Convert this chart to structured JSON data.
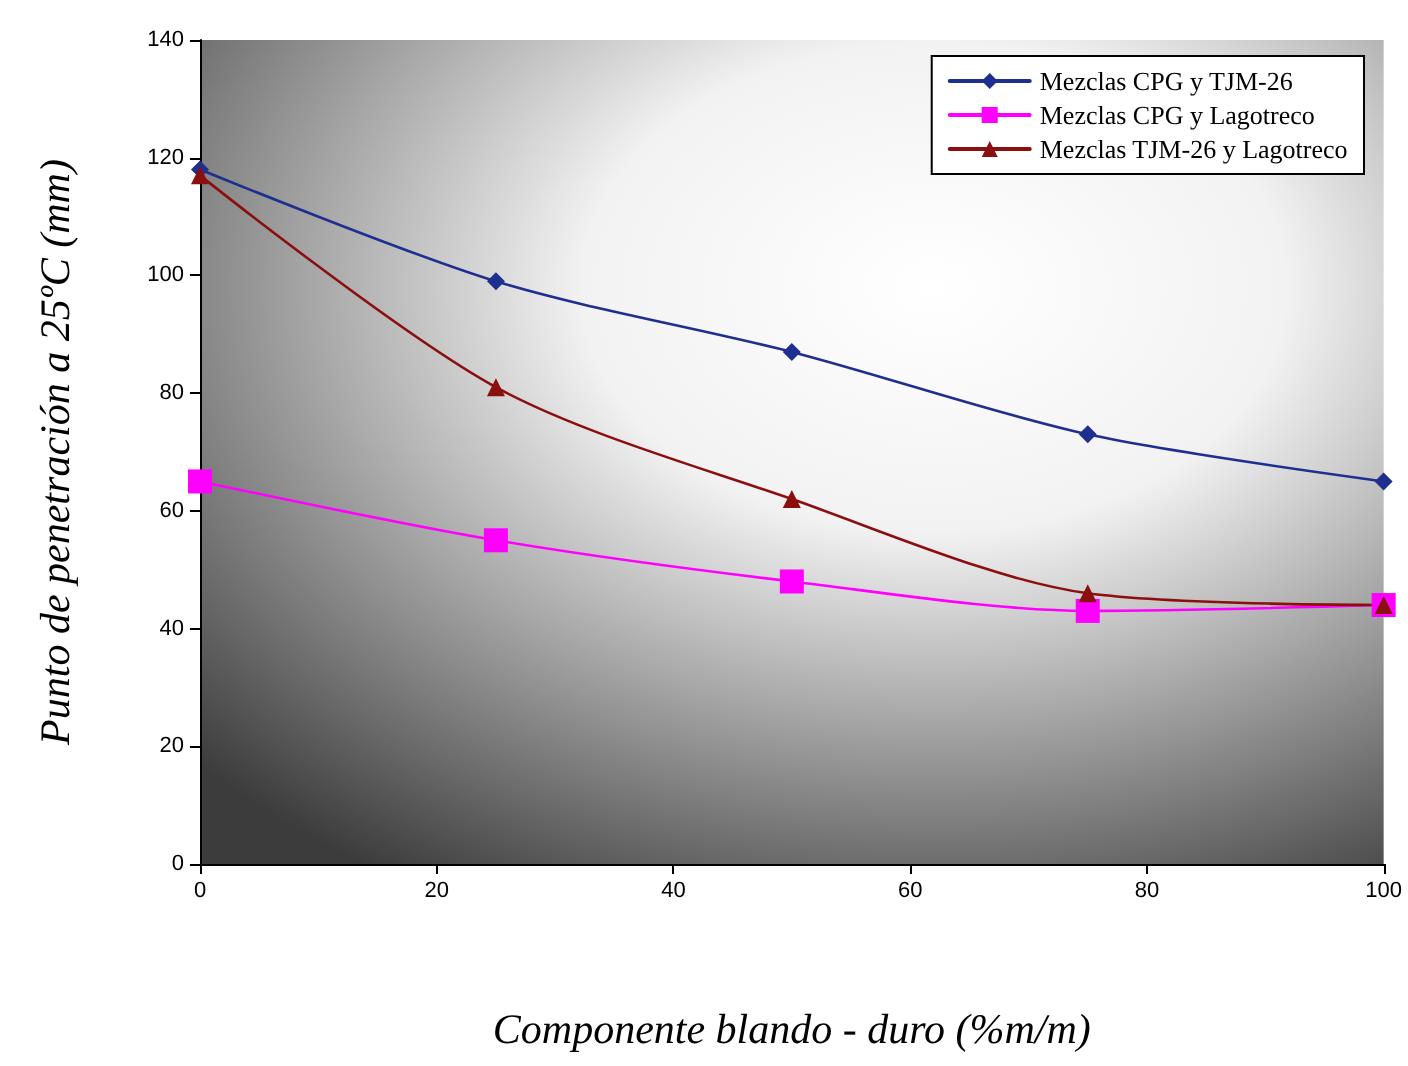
{
  "chart_data": {
    "type": "line",
    "xlabel": "Componente blando - duro (%m/m)",
    "ylabel": "Punto de penetración a 25ºC (mm)",
    "x": [
      0,
      25,
      50,
      75,
      100
    ],
    "series": [
      {
        "name": "Mezclas CPG y TJM-26",
        "color": "#1f2f8f",
        "marker": "diamond",
        "values": [
          118,
          99,
          87,
          73,
          65
        ]
      },
      {
        "name": "Mezclas CPG y Lagotreco",
        "color": "#ff00ff",
        "marker": "square",
        "values": [
          65,
          55,
          48,
          43,
          44
        ]
      },
      {
        "name": "Mezclas TJM-26 y Lagotreco",
        "color": "#8b0f0f",
        "marker": "triangle",
        "values": [
          117,
          81,
          62,
          46,
          44
        ]
      }
    ],
    "xlim": [
      0,
      100
    ],
    "xticks": [
      0,
      20,
      40,
      60,
      80,
      100
    ],
    "ylim": [
      0,
      140
    ],
    "yticks": [
      0,
      20,
      40,
      60,
      80,
      100,
      120,
      140
    ],
    "grid": false,
    "legend": "top right",
    "line_style": "solid"
  }
}
